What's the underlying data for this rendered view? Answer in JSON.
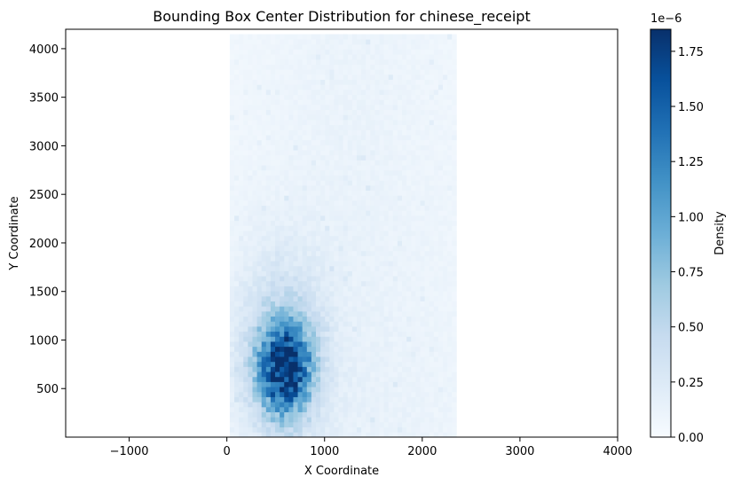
{
  "chart_data": {
    "type": "heatmap",
    "title": "Bounding Box Center Distribution for chinese_receipt",
    "xlabel": "X Coordinate",
    "ylabel": "Y Coordinate",
    "xlim": [
      -1650,
      4000
    ],
    "ylim": [
      0,
      4200
    ],
    "xticks": [
      -1000,
      0,
      1000,
      2000,
      3000,
      4000
    ],
    "yticks": [
      500,
      1000,
      1500,
      2000,
      2500,
      3000,
      3500,
      4000
    ],
    "xtick_labels": [
      "−1000",
      "0",
      "1000",
      "2000",
      "3000",
      "4000"
    ],
    "ytick_labels": [
      "500",
      "1000",
      "1500",
      "2000",
      "2500",
      "3000",
      "3500",
      "4000"
    ],
    "bins_x": [
      30,
      2350
    ],
    "bins_y": [
      0,
      4150
    ],
    "colormap": "Blues",
    "colorbar": {
      "label": "Density",
      "min": 0,
      "max": 1.85,
      "exponent_label": "1e−6",
      "ticks": [
        0.0,
        0.25,
        0.5,
        0.75,
        1.0,
        1.25,
        1.5,
        1.75
      ],
      "tick_labels": [
        "0.00",
        "0.25",
        "0.50",
        "0.75",
        "1.00",
        "1.25",
        "1.50",
        "1.75"
      ]
    },
    "density_peak": {
      "x": 590,
      "y": 700,
      "value": 1.84
    },
    "grid": false
  }
}
